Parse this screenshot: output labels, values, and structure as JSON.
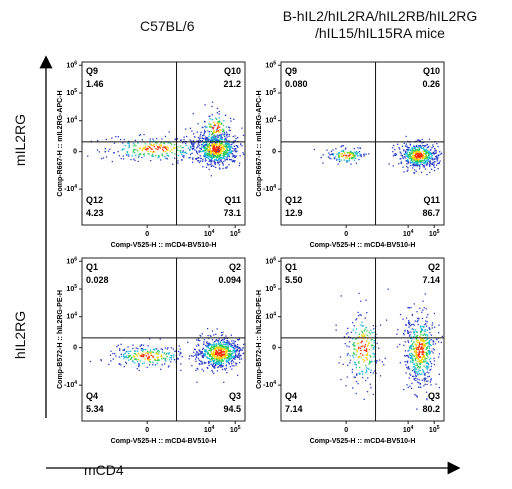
{
  "column_titles": {
    "left": "C57BL/6",
    "right_line1": "B-hIL2/hIL2RA/hIL2RB/hIL2RG",
    "right_line2": "/hIL15/hIL15RA mice"
  },
  "row_labels": {
    "top": "mIL2RG",
    "bottom": "hIL2RG"
  },
  "x_axis_label": "mCD4",
  "chart_data": [
    {
      "type": "scatter",
      "panel": "top-left",
      "xlabel": "Comp-V525-H :: mCD4-BV510-H",
      "ylabel": "Comp-R667-H :: mIL2RG-APC-H",
      "x_ticks": [
        "0",
        "10^4",
        "10^5"
      ],
      "y_ticks": [
        "-10^4",
        "0",
        "10^4",
        "10^5",
        "10^6"
      ],
      "quadrants": [
        {
          "name": "Q9",
          "value": "1.46"
        },
        {
          "name": "Q10",
          "value": "21.2"
        },
        {
          "name": "Q12",
          "value": "4.23"
        },
        {
          "name": "Q11",
          "value": "73.1"
        }
      ]
    },
    {
      "type": "scatter",
      "panel": "top-right",
      "xlabel": "Comp-V525-H :: mCD4-BV510-H",
      "ylabel": "Comp-R667-H :: mIL2RG-APC-H",
      "x_ticks": [
        "0",
        "10^4",
        "10^5"
      ],
      "y_ticks": [
        "-10^4",
        "0",
        "10^4",
        "10^5",
        "10^6"
      ],
      "quadrants": [
        {
          "name": "Q9",
          "value": "0.080"
        },
        {
          "name": "Q10",
          "value": "0.26"
        },
        {
          "name": "Q12",
          "value": "12.9"
        },
        {
          "name": "Q11",
          "value": "86.7"
        }
      ]
    },
    {
      "type": "scatter",
      "panel": "bottom-left",
      "xlabel": "Comp-V525-H :: mCD4-BV510-H",
      "ylabel": "Comp-B572-H :: hIL2RG-PE-H",
      "x_ticks": [
        "0",
        "10^4",
        "10^5"
      ],
      "y_ticks": [
        "-10^4",
        "0",
        "10^4",
        "10^5",
        "10^6"
      ],
      "quadrants": [
        {
          "name": "Q1",
          "value": "0.028"
        },
        {
          "name": "Q2",
          "value": "0.094"
        },
        {
          "name": "Q4",
          "value": "5.34"
        },
        {
          "name": "Q3",
          "value": "94.5"
        }
      ]
    },
    {
      "type": "scatter",
      "panel": "bottom-right",
      "xlabel": "Comp-V525-H :: mCD4-BV510-H",
      "ylabel": "Comp-B572-H :: hIL2RG-PE-H",
      "x_ticks": [
        "0",
        "10^4",
        "10^5"
      ],
      "y_ticks": [
        "-10^4",
        "0",
        "10^4",
        "10^5",
        "10^6"
      ],
      "quadrants": [
        {
          "name": "Q1",
          "value": "5.50"
        },
        {
          "name": "Q2",
          "value": "7.14"
        },
        {
          "name": "Q4",
          "value": "7.14"
        },
        {
          "name": "Q3",
          "value": "80.2"
        }
      ]
    }
  ]
}
